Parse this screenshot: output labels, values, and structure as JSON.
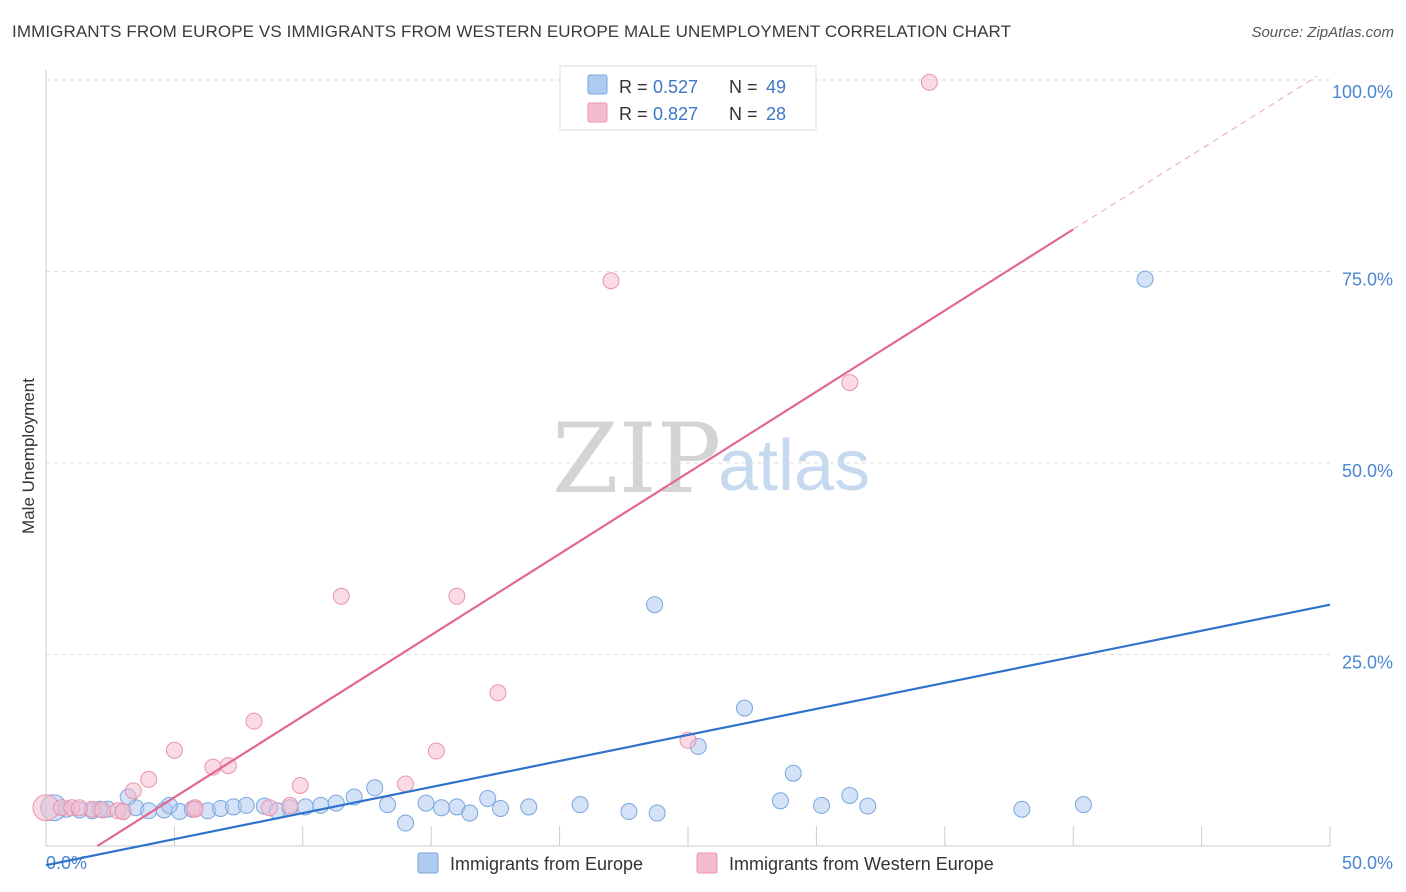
{
  "header": {
    "title": "IMMIGRANTS FROM EUROPE VS IMMIGRANTS FROM WESTERN EUROPE MALE UNEMPLOYMENT CORRELATION CHART",
    "source": "Source: ZipAtlas.com"
  },
  "watermark": {
    "zip": "ZIP",
    "atlas": "atlas"
  },
  "legend": {
    "blue": {
      "r_label": "R = ",
      "r_value": "0.527",
      "n_label": "N = ",
      "n_value": "49"
    },
    "pink": {
      "r_label": "R = ",
      "r_value": "0.827",
      "n_label": "N = ",
      "n_value": "28"
    }
  },
  "colors": {
    "blue_fill": "#aecbf0",
    "blue_stroke": "#7aa6dd",
    "blue_line": "#2f72cc",
    "pink_fill": "#f5bccd",
    "pink_stroke": "#eb93ae",
    "pink_line": "#e2678f",
    "tick_color": "#4a86d1",
    "grid": "#dddddd"
  },
  "chart_data": {
    "type": "scatter",
    "title": "IMMIGRANTS FROM EUROPE VS IMMIGRANTS FROM WESTERN EUROPE MALE UNEMPLOYMENT CORRELATION CHART",
    "xlabel": "",
    "ylabel": "Male Unemployment",
    "xlim": [
      0,
      50
    ],
    "ylim": [
      0,
      100
    ],
    "x_tick_labels": {
      "min": "0.0%",
      "max": "50.0%"
    },
    "y_ticks": [
      {
        "value": 25,
        "label": "25.0%"
      },
      {
        "value": 50,
        "label": "50.0%"
      },
      {
        "value": 75,
        "label": "75.0%"
      },
      {
        "value": 100,
        "label": "100.0%"
      }
    ],
    "series": [
      {
        "name": "Immigrants from Europe",
        "color": "blue",
        "r": 0.527,
        "n": 49,
        "trend": {
          "x": [
            0,
            50
          ],
          "y": [
            -2.5,
            31.5
          ]
        },
        "points": [
          [
            0.3,
            5.0
          ],
          [
            0.8,
            4.8
          ],
          [
            1.3,
            4.7
          ],
          [
            1.8,
            4.6
          ],
          [
            2.4,
            4.8
          ],
          [
            3.0,
            4.5
          ],
          [
            3.5,
            5.0
          ],
          [
            4.0,
            4.6
          ],
          [
            4.6,
            4.7
          ],
          [
            5.2,
            4.5
          ],
          [
            5.7,
            4.8
          ],
          [
            6.3,
            4.6
          ],
          [
            6.8,
            4.9
          ],
          [
            7.3,
            5.1
          ],
          [
            7.8,
            5.3
          ],
          [
            8.5,
            5.2
          ],
          [
            9.0,
            4.6
          ],
          [
            9.5,
            5.0
          ],
          [
            10.1,
            5.1
          ],
          [
            10.7,
            5.3
          ],
          [
            11.3,
            5.6
          ],
          [
            12.0,
            6.4
          ],
          [
            12.8,
            7.6
          ],
          [
            13.3,
            5.4
          ],
          [
            14.0,
            3.0
          ],
          [
            14.8,
            5.6
          ],
          [
            15.4,
            5.0
          ],
          [
            16.0,
            5.1
          ],
          [
            16.5,
            4.3
          ],
          [
            17.2,
            6.2
          ],
          [
            17.7,
            4.9
          ],
          [
            18.8,
            5.1
          ],
          [
            20.8,
            5.4
          ],
          [
            22.7,
            4.5
          ],
          [
            23.7,
            31.5
          ],
          [
            23.8,
            4.3
          ],
          [
            25.4,
            13.0
          ],
          [
            27.2,
            18.0
          ],
          [
            28.6,
            5.9
          ],
          [
            29.1,
            9.5
          ],
          [
            30.2,
            5.3
          ],
          [
            31.3,
            6.6
          ],
          [
            32.0,
            5.2
          ],
          [
            38.0,
            4.8
          ],
          [
            40.4,
            5.4
          ],
          [
            42.8,
            74.0
          ],
          [
            3.2,
            6.4
          ],
          [
            2.1,
            4.8
          ],
          [
            4.8,
            5.3
          ]
        ]
      },
      {
        "name": "Immigrants from Western Europe",
        "color": "pink",
        "r": 0.827,
        "n": 28,
        "trend": {
          "x": [
            2.0,
            40.0
          ],
          "y": [
            0,
            80.5
          ]
        },
        "trend_dashed": {
          "x": [
            40.0,
            49.5
          ],
          "y": [
            80.5,
            100.5
          ]
        },
        "points": [
          [
            0.0,
            5.0
          ],
          [
            0.6,
            5.0
          ],
          [
            1.0,
            5.0
          ],
          [
            1.8,
            4.8
          ],
          [
            2.8,
            4.6
          ],
          [
            3.4,
            7.2
          ],
          [
            4.0,
            8.7
          ],
          [
            5.0,
            12.5
          ],
          [
            5.8,
            5.0
          ],
          [
            6.5,
            10.3
          ],
          [
            7.1,
            10.5
          ],
          [
            8.1,
            16.3
          ],
          [
            8.7,
            5.0
          ],
          [
            9.9,
            7.9
          ],
          [
            11.5,
            32.6
          ],
          [
            14.0,
            8.1
          ],
          [
            15.2,
            12.4
          ],
          [
            16.0,
            32.6
          ],
          [
            17.6,
            20.0
          ],
          [
            22.0,
            73.8
          ],
          [
            25.0,
            13.8
          ],
          [
            31.3,
            60.5
          ],
          [
            34.4,
            99.7
          ],
          [
            5.8,
            4.8
          ],
          [
            9.5,
            5.3
          ],
          [
            2.2,
            4.7
          ],
          [
            3.0,
            4.5
          ],
          [
            1.3,
            5.0
          ]
        ]
      }
    ],
    "bottom_legend": [
      "Immigrants from Europe",
      "Immigrants from Western Europe"
    ]
  }
}
